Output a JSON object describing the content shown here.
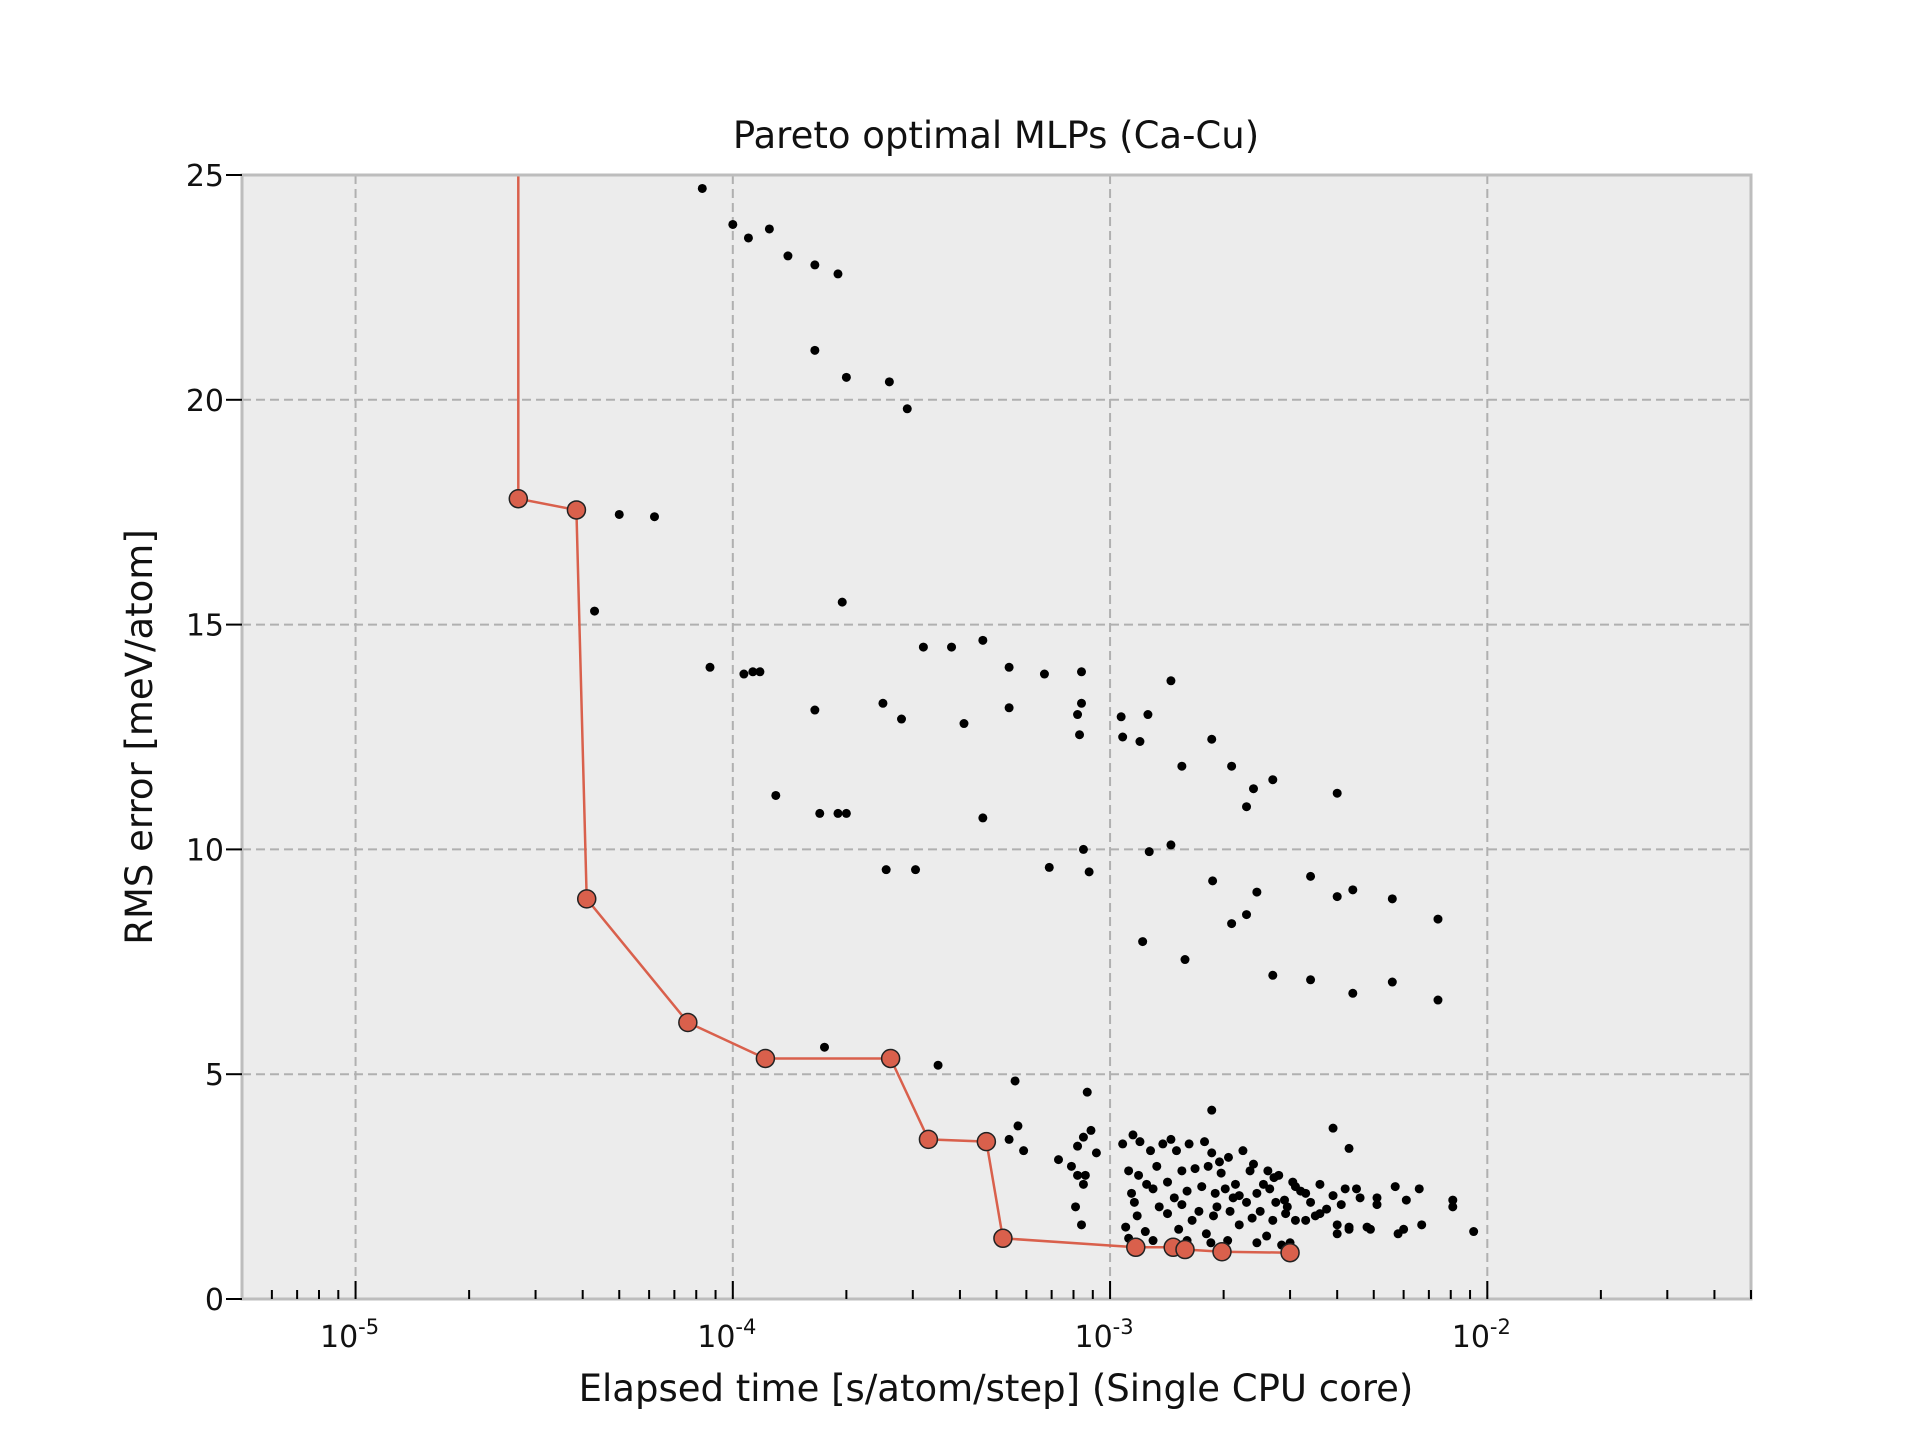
{
  "chart_data": {
    "type": "scatter",
    "title": "Pareto optimal MLPs (Ca-Cu)",
    "xlabel": "Elapsed time [s/atom/step] (Single CPU core)",
    "ylabel": "RMS error [meV/atom]",
    "xscale": "log",
    "xlim": [
      5e-06,
      0.05
    ],
    "ylim": [
      0,
      25
    ],
    "grid": true,
    "x_ticks": [
      {
        "base": "10",
        "exp": "-5",
        "value": 1e-05
      },
      {
        "base": "10",
        "exp": "-4",
        "value": 0.0001
      },
      {
        "base": "10",
        "exp": "-3",
        "value": 0.001
      },
      {
        "base": "10",
        "exp": "-2",
        "value": 0.01
      }
    ],
    "y_ticks": [
      "0",
      "5",
      "10",
      "15",
      "20",
      "25"
    ],
    "colors": {
      "background": "#ececec",
      "pareto": "#d9604c",
      "points": "#000000",
      "grid": "#b0b0b0",
      "spine": "#bdbdbd"
    },
    "pareto_front": {
      "x": [
        2.7e-05,
        2.7e-05,
        3.85e-05,
        4.1e-05,
        7.6e-05,
        0.000122,
        0.000262,
        0.00033,
        0.00047,
        0.00052,
        0.00117,
        0.00147,
        0.00158,
        0.00198,
        0.003
      ],
      "y": [
        25.0,
        17.8,
        17.55,
        8.9,
        6.15,
        5.35,
        5.35,
        3.55,
        3.5,
        1.35,
        1.15,
        1.15,
        1.1,
        1.05,
        1.03
      ]
    },
    "points": {
      "x": [
        8.3e-05,
        0.0001,
        0.00011,
        0.000125,
        0.00014,
        0.000165,
        0.00019,
        0.000165,
        0.0002,
        0.00026,
        0.00029,
        5e-05,
        6.2e-05,
        4.3e-05,
        0.000195,
        0.00032,
        0.00038,
        0.00046,
        0.00054,
        0.00067,
        0.00084,
        8.7e-05,
        0.000107,
        0.000113,
        0.000118,
        0.000165,
        0.00025,
        0.00028,
        0.00041,
        0.00054,
        0.00082,
        0.00084,
        0.00083,
        0.00107,
        0.00126,
        0.00145,
        0.00108,
        0.0012,
        0.00186,
        0.00155,
        0.0021,
        0.0027,
        0.0024,
        0.0023,
        0.004,
        0.00013,
        0.00017,
        0.00019,
        0.0002,
        0.00046,
        0.00085,
        0.00069,
        0.00088,
        0.00127,
        0.00145,
        0.000255,
        0.000305,
        0.00187,
        0.00245,
        0.0023,
        0.0021,
        0.00122,
        0.00158,
        0.0034,
        0.004,
        0.0044,
        0.0056,
        0.0074,
        0.0027,
        0.0034,
        0.0044,
        0.0056,
        0.0074,
        0.000175,
        0.00035,
        0.00056,
        0.00087,
        0.00186,
        0.00054,
        0.00057,
        0.00059,
        0.00073,
        0.00079,
        0.00082,
        0.00085,
        0.00089,
        0.00092,
        0.00086,
        0.00082,
        0.00085,
        0.00081,
        0.00084,
        0.00108,
        0.00115,
        0.0012,
        0.00128,
        0.00138,
        0.00145,
        0.0015,
        0.00162,
        0.00178,
        0.00186,
        0.00195,
        0.00206,
        0.00225,
        0.0024,
        0.00262,
        0.00272,
        0.00112,
        0.00119,
        0.00125,
        0.00133,
        0.00142,
        0.00155,
        0.00168,
        0.00182,
        0.00197,
        0.00215,
        0.00235,
        0.00255,
        0.0028,
        0.00305,
        0.0032,
        0.00114,
        0.0013,
        0.00148,
        0.0016,
        0.00175,
        0.0019,
        0.00202,
        0.0022,
        0.00245,
        0.00265,
        0.0029,
        0.0031,
        0.00116,
        0.00135,
        0.00155,
        0.00172,
        0.00192,
        0.00212,
        0.0023,
        0.0025,
        0.00275,
        0.00295,
        0.00118,
        0.00142,
        0.00165,
        0.00188,
        0.00208,
        0.00238,
        0.0027,
        0.00292,
        0.0031,
        0.0011,
        0.00124,
        0.00152,
        0.0018,
        0.0022,
        0.0026,
        0.00112,
        0.0013,
        0.0016,
        0.00185,
        0.00205,
        0.00245,
        0.00285,
        0.003,
        0.0033,
        0.0036,
        0.0039,
        0.0042,
        0.0045,
        0.0051,
        0.0057,
        0.0066,
        0.0081,
        0.0034,
        0.00375,
        0.0041,
        0.0046,
        0.0051,
        0.0061,
        0.0081,
        0.0033,
        0.0036,
        0.004,
        0.0043,
        0.0048,
        0.0058,
        0.0067,
        0.0092,
        0.004,
        0.0043,
        0.0049,
        0.006,
        0.0035,
        0.0039,
        0.0043
      ],
      "y": [
        24.7,
        23.9,
        23.6,
        23.8,
        23.2,
        23.0,
        22.8,
        21.1,
        20.5,
        20.4,
        19.8,
        17.45,
        17.4,
        15.3,
        15.5,
        14.5,
        14.5,
        14.65,
        14.05,
        13.9,
        13.95,
        14.05,
        13.9,
        13.95,
        13.95,
        13.1,
        13.25,
        12.9,
        12.8,
        13.15,
        13.0,
        13.25,
        12.55,
        12.95,
        13.0,
        13.75,
        12.5,
        12.4,
        12.45,
        11.85,
        11.85,
        11.55,
        11.35,
        10.95,
        11.25,
        11.2,
        10.8,
        10.8,
        10.8,
        10.7,
        10.0,
        9.6,
        9.5,
        9.95,
        10.1,
        9.55,
        9.55,
        9.3,
        9.05,
        8.55,
        8.35,
        7.95,
        7.55,
        9.4,
        8.95,
        9.1,
        8.9,
        8.45,
        7.2,
        7.1,
        6.8,
        7.05,
        6.65,
        5.6,
        5.2,
        4.85,
        4.6,
        4.2,
        3.55,
        3.85,
        3.3,
        3.1,
        2.95,
        3.4,
        3.6,
        3.75,
        3.25,
        2.75,
        2.75,
        2.55,
        2.05,
        1.65,
        3.45,
        3.65,
        3.5,
        3.3,
        3.45,
        3.55,
        3.3,
        3.45,
        3.5,
        3.25,
        3.05,
        3.15,
        3.3,
        3.0,
        2.85,
        2.7,
        2.85,
        2.75,
        2.55,
        2.95,
        2.6,
        2.85,
        2.9,
        2.95,
        2.8,
        2.55,
        2.85,
        2.55,
        2.75,
        2.6,
        2.4,
        2.35,
        2.45,
        2.25,
        2.4,
        2.5,
        2.35,
        2.45,
        2.3,
        2.35,
        2.45,
        2.2,
        2.5,
        2.15,
        2.05,
        2.1,
        1.95,
        2.05,
        2.25,
        2.15,
        1.95,
        2.15,
        2.05,
        1.85,
        1.9,
        1.75,
        1.85,
        1.95,
        1.8,
        1.75,
        1.9,
        1.75,
        1.6,
        1.5,
        1.55,
        1.45,
        1.65,
        1.4,
        1.35,
        1.3,
        1.3,
        1.25,
        1.3,
        1.25,
        1.2,
        1.25,
        2.35,
        2.55,
        2.3,
        2.45,
        2.45,
        2.25,
        2.5,
        2.45,
        2.2,
        2.15,
        2.0,
        2.1,
        2.25,
        2.1,
        2.2,
        2.05,
        1.75,
        1.9,
        1.65,
        1.55,
        1.6,
        1.45,
        1.65,
        1.5,
        1.45,
        1.6,
        1.55,
        1.55,
        1.85,
        3.8,
        3.35
      ]
    }
  }
}
